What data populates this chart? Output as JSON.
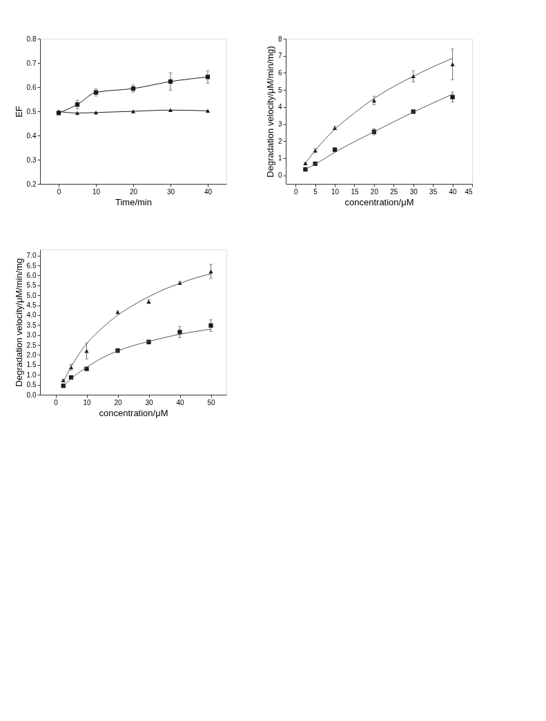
{
  "chart_data": [
    {
      "type": "line",
      "xlabel": "Time/min",
      "ylabel": "EF",
      "xlim": [
        -5,
        45
      ],
      "xticks": [
        0,
        10,
        20,
        30,
        40
      ],
      "ylim": [
        0.2,
        0.8
      ],
      "yticks": [
        0.2,
        0.3,
        0.4,
        0.5,
        0.6,
        0.7,
        0.8
      ],
      "grid": false,
      "line_style": "solid",
      "x": [
        0,
        5,
        10,
        20,
        30,
        40
      ],
      "series": [
        {
          "color": "#1a1a1a",
          "marker": "square",
          "values": [
            0.493,
            0.528,
            0.578,
            0.594,
            0.623,
            0.642
          ],
          "errors": [
            0.005,
            0.018,
            0.015,
            0.015,
            0.036,
            0.026
          ]
        },
        {
          "color": "#1a1a1a",
          "marker": "triangle",
          "values": [
            0.499,
            0.493,
            0.495,
            0.5,
            0.505,
            0.502
          ]
        }
      ]
    },
    {
      "type": "scatter",
      "xlabel": "concentration/μM",
      "ylabel": "Degradation velocity/μM/min/mg)",
      "xlim": [
        -2.5,
        45
      ],
      "xticks": [
        0,
        5,
        10,
        15,
        20,
        25,
        30,
        35,
        40,
        45
      ],
      "ylim": [
        -0.5,
        8
      ],
      "yticks": [
        0,
        1,
        2,
        3,
        4,
        5,
        6,
        7,
        8
      ],
      "grid": false,
      "x": [
        2.5,
        5,
        10,
        20,
        30,
        40
      ],
      "series": [
        {
          "color": "#1a1a1a",
          "marker": "triangle",
          "values": [
            0.7,
            1.45,
            2.77,
            4.38,
            5.8,
            6.5
          ],
          "errors": [
            0.05,
            0.12,
            0.1,
            0.25,
            0.33,
            0.9
          ]
        },
        {
          "color": "#1a1a1a",
          "marker": "square",
          "values": [
            0.35,
            0.68,
            1.5,
            2.55,
            3.73,
            4.58
          ],
          "errors": [
            0.05,
            0.05,
            0.1,
            0.18,
            0.05,
            0.3
          ]
        },
        {
          "type": "line",
          "color": "#555555",
          "marker": "none",
          "x": [
            2.5,
            5,
            10,
            15,
            20,
            25,
            30,
            35,
            40
          ],
          "values": [
            0.7,
            1.45,
            2.7,
            3.65,
            4.5,
            5.2,
            5.8,
            6.35,
            6.85
          ]
        },
        {
          "type": "line",
          "color": "#555555",
          "marker": "none",
          "x": [
            2.5,
            5,
            10,
            20,
            30,
            40
          ],
          "values": [
            0.35,
            0.65,
            1.35,
            2.55,
            3.7,
            4.75
          ]
        }
      ]
    },
    {
      "type": "scatter",
      "xlabel": "concentration/μM",
      "ylabel": "Degradation velocity/μM/min/mg",
      "xlim": [
        -5,
        55
      ],
      "xticks": [
        0,
        10,
        20,
        30,
        40,
        50
      ],
      "ylim": [
        0,
        7.3
      ],
      "yticks": [
        {
          "value": 0,
          "label": "0.0"
        },
        0.5,
        {
          "value": 1,
          "label": "1.0"
        },
        1.5,
        {
          "value": 2,
          "label": "2.0"
        },
        2.5,
        {
          "value": 3,
          "label": "3.0"
        },
        3.5,
        {
          "value": 4,
          "label": "4.0"
        },
        4.5,
        {
          "value": 5,
          "label": "5.0"
        },
        5.5,
        {
          "value": 6,
          "label": "6.0"
        },
        6.5,
        {
          "value": 7,
          "label": "7.0"
        }
      ],
      "grid": false,
      "x": [
        2.5,
        5,
        10,
        20,
        30,
        40,
        50
      ],
      "series": [
        {
          "color": "#1a1a1a",
          "marker": "triangle",
          "values": [
            0.72,
            1.38,
            2.2,
            4.15,
            4.68,
            5.62,
            6.2
          ],
          "errors": [
            0.05,
            0.15,
            0.4,
            0.07,
            0.1,
            0.08,
            0.36
          ]
        },
        {
          "color": "#1a1a1a",
          "marker": "square",
          "values": [
            0.45,
            0.87,
            1.3,
            2.22,
            2.65,
            3.15,
            3.48
          ],
          "errors": [
            0.05,
            0.05,
            0.05,
            0.1,
            0.1,
            0.28,
            0.29
          ]
        },
        {
          "type": "line",
          "color": "#555555",
          "marker": "none",
          "x": [
            2.5,
            5,
            10,
            15,
            20,
            25,
            30,
            35,
            40,
            45,
            50
          ],
          "values": [
            0.65,
            1.4,
            2.57,
            3.35,
            4.0,
            4.5,
            4.93,
            5.3,
            5.6,
            5.87,
            6.08
          ]
        },
        {
          "type": "line",
          "color": "#555555",
          "marker": "none",
          "x": [
            2.5,
            5,
            10,
            15,
            20,
            25,
            30,
            35,
            40,
            45,
            50
          ],
          "values": [
            0.42,
            0.8,
            1.38,
            1.85,
            2.2,
            2.47,
            2.68,
            2.87,
            3.04,
            3.18,
            3.3
          ]
        }
      ]
    }
  ]
}
